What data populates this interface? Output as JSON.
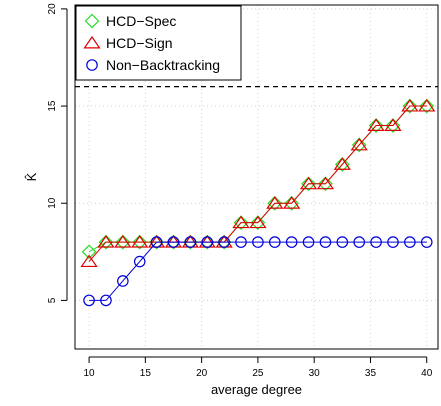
{
  "chart_data": {
    "type": "line",
    "title": "",
    "xlabel": "average degree",
    "ylabel": "K̂",
    "xlim": [
      8.75,
      41
    ],
    "ylim": [
      2.5,
      20.2
    ],
    "xticks": [
      10,
      15,
      20,
      25,
      30,
      35,
      40
    ],
    "yticks": [
      5,
      10,
      15,
      20
    ],
    "grid": true,
    "legend_position": "top-left",
    "reference_line": {
      "y": 16,
      "style": "dashed",
      "color": "#000000"
    },
    "x": [
      10,
      11.5,
      13,
      14.5,
      16,
      17.5,
      19,
      20.5,
      22,
      23.5,
      25,
      26.5,
      28,
      29.5,
      31,
      32.5,
      34,
      35.5,
      37,
      38.5,
      40
    ],
    "series": [
      {
        "name": "HCD−Spec",
        "marker": "diamond",
        "color": "#22dd22",
        "values": [
          7.5,
          8,
          8,
          8,
          8,
          8,
          8,
          8,
          8,
          9,
          9,
          10,
          10,
          11,
          11,
          12,
          13,
          14,
          14,
          15,
          15
        ]
      },
      {
        "name": "HCD−Sign",
        "marker": "triangle",
        "color": "#dd0000",
        "values": [
          7,
          8,
          8,
          8,
          8,
          8,
          8,
          8,
          8,
          9,
          9,
          10,
          10,
          11,
          11,
          12,
          13,
          14,
          14,
          15,
          15
        ]
      },
      {
        "name": "Non−Backtracking",
        "marker": "circle",
        "color": "#0000dd",
        "values": [
          5,
          5,
          6,
          7,
          8,
          8,
          8,
          8,
          8,
          8,
          8,
          8,
          8,
          8,
          8,
          8,
          8,
          8,
          8,
          8,
          8
        ]
      }
    ]
  }
}
